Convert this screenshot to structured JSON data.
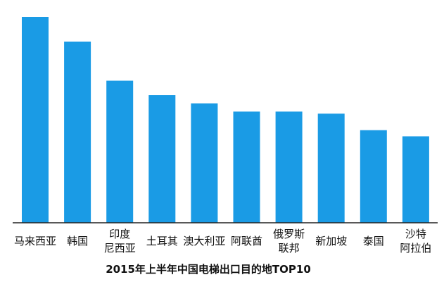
{
  "chart_data": {
    "type": "bar",
    "title": "2015年上半年中国电梯出口目的地TOP10",
    "xlabel": "",
    "ylabel": "",
    "categories": [
      [
        "马来西亚"
      ],
      [
        "韩国"
      ],
      [
        "印度",
        "尼西亚"
      ],
      [
        "土耳其"
      ],
      [
        "澳大利亚"
      ],
      [
        "阿联酋"
      ],
      [
        "俄罗斯",
        "联邦"
      ],
      [
        "新加坡"
      ],
      [
        "泰国"
      ],
      [
        "沙特",
        "阿拉伯"
      ]
    ],
    "values": [
      100,
      88,
      69,
      62,
      58,
      54,
      54,
      53,
      45,
      42
    ],
    "ylim": [
      0,
      100
    ],
    "grid": false,
    "legend": "none",
    "bar_color": "#1a9be5"
  }
}
